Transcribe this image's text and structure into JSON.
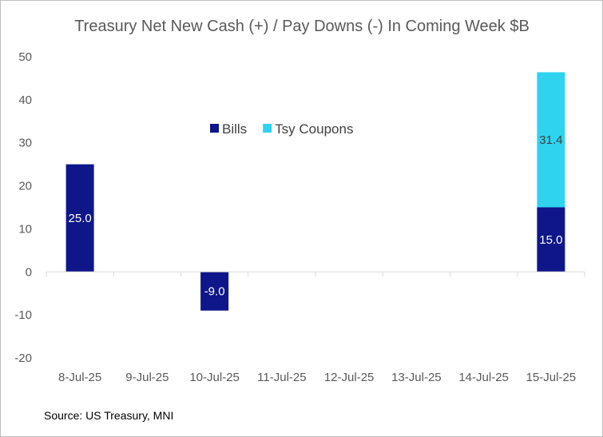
{
  "chart_data": {
    "type": "bar",
    "stacked": true,
    "title": "Treasury Net New Cash (+) / Pay Downs (-)  In Coming Week $B",
    "source": "Source: US Treasury, MNI",
    "categories": [
      "8-Jul-25",
      "9-Jul-25",
      "10-Jul-25",
      "11-Jul-25",
      "12-Jul-25",
      "13-Jul-25",
      "14-Jul-25",
      "15-Jul-25"
    ],
    "series": [
      {
        "name": "Bills",
        "color": "#0f1689",
        "values": [
          25.0,
          null,
          -9.0,
          null,
          null,
          null,
          null,
          15.0
        ],
        "label_color": "#ffffff"
      },
      {
        "name": "Tsy Coupons",
        "color": "#2fd3ef",
        "values": [
          null,
          null,
          null,
          null,
          null,
          null,
          null,
          31.4
        ],
        "label_color": "#404040"
      }
    ],
    "ylim": [
      -20,
      50
    ],
    "yticks": [
      -20,
      -10,
      0,
      10,
      20,
      30,
      40,
      50
    ],
    "grid": false,
    "legend_position": "upper-center"
  }
}
